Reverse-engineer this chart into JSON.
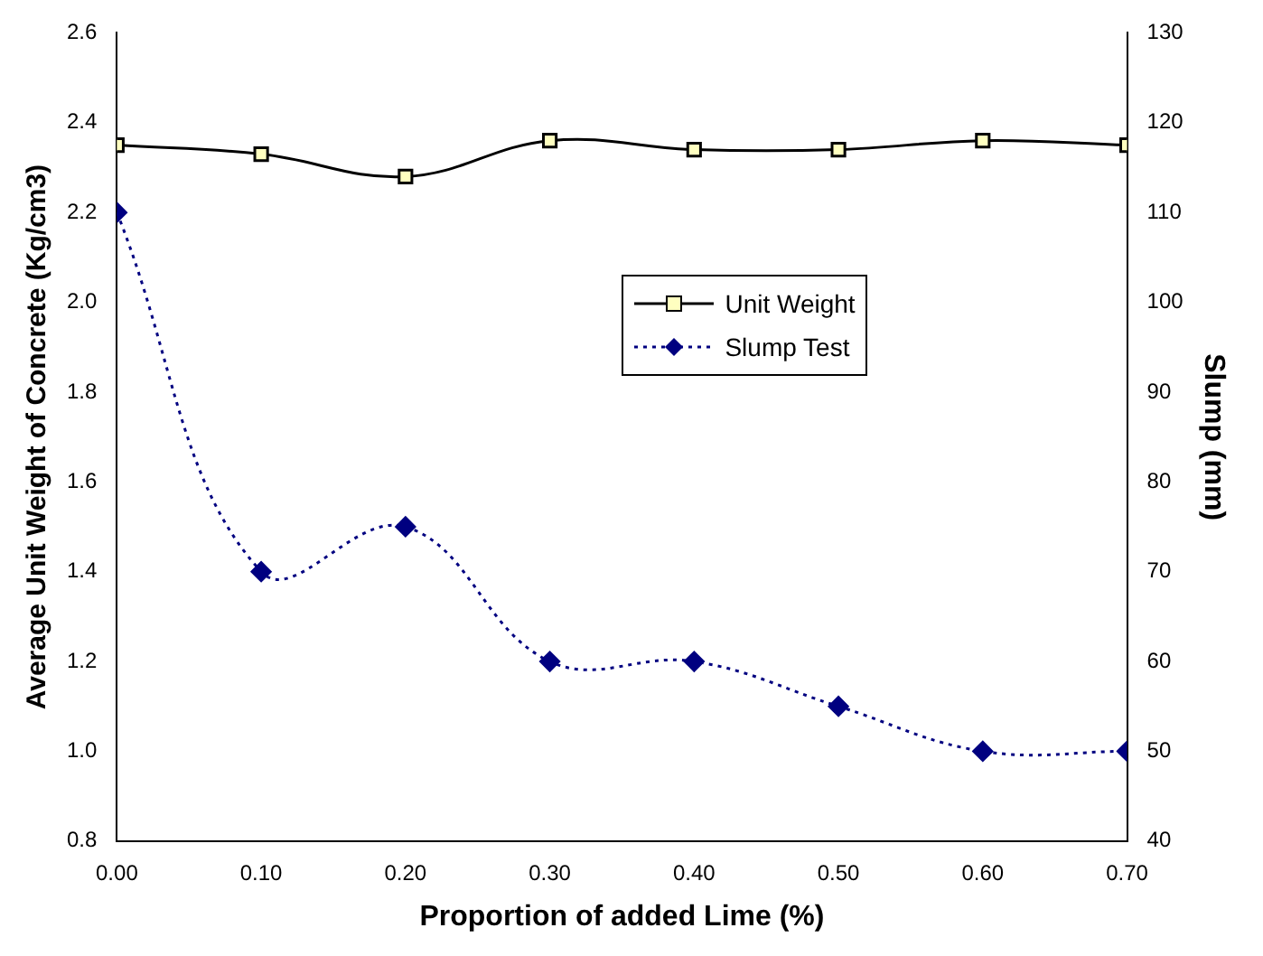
{
  "chart_data": {
    "type": "line",
    "xlabel": "Proportion of added Lime (%)",
    "ylabel": "Average Unit Weight of Concrete (Kg/cm3)",
    "y2label": "Slump (mm)",
    "x": [
      0,
      0.1,
      0.2,
      0.3,
      0.4,
      0.5,
      0.6,
      0.7
    ],
    "series": [
      {
        "name": "Unit Weight",
        "color": "#000000",
        "marker": "square",
        "line_style": "solid",
        "values": [
          2.35,
          2.33,
          2.28,
          2.36,
          2.34,
          2.34,
          2.36,
          2.35
        ]
      },
      {
        "name": "Slump Test",
        "color": "#000080",
        "marker": "diamond",
        "line_style": "dotted",
        "axis": "y2",
        "values": [
          110,
          70,
          75,
          60,
          60,
          55,
          50,
          50
        ]
      }
    ],
    "xlim": [
      0,
      0.7
    ],
    "xticks": [
      {
        "value": 0,
        "label": "0.00"
      },
      {
        "value": 0.1,
        "label": "0.10"
      },
      {
        "value": 0.2,
        "label": "0.20"
      },
      {
        "value": 0.3,
        "label": "0.30"
      },
      {
        "value": 0.4,
        "label": "0.40"
      },
      {
        "value": 0.5,
        "label": "0.50"
      },
      {
        "value": 0.6,
        "label": "0.60"
      },
      {
        "value": 0.7,
        "label": "0.70"
      }
    ],
    "ylim": [
      0.8,
      2.6
    ],
    "yticks": [
      {
        "value": 0.8,
        "label": "0.8"
      },
      {
        "value": 1.0,
        "label": "1.0"
      },
      {
        "value": 1.2,
        "label": "1.2"
      },
      {
        "value": 1.4,
        "label": "1.4"
      },
      {
        "value": 1.6,
        "label": "1.6"
      },
      {
        "value": 1.8,
        "label": "1.8"
      },
      {
        "value": 2.0,
        "label": "2.0"
      },
      {
        "value": 2.2,
        "label": "2.2"
      },
      {
        "value": 2.4,
        "label": "2.4"
      },
      {
        "value": 2.6,
        "label": "2.6"
      }
    ],
    "y2lim": [
      40,
      130
    ],
    "y2ticks": [
      40,
      50,
      60,
      70,
      80,
      90,
      100,
      110,
      120,
      130
    ],
    "grid": false,
    "legend": "top right"
  }
}
